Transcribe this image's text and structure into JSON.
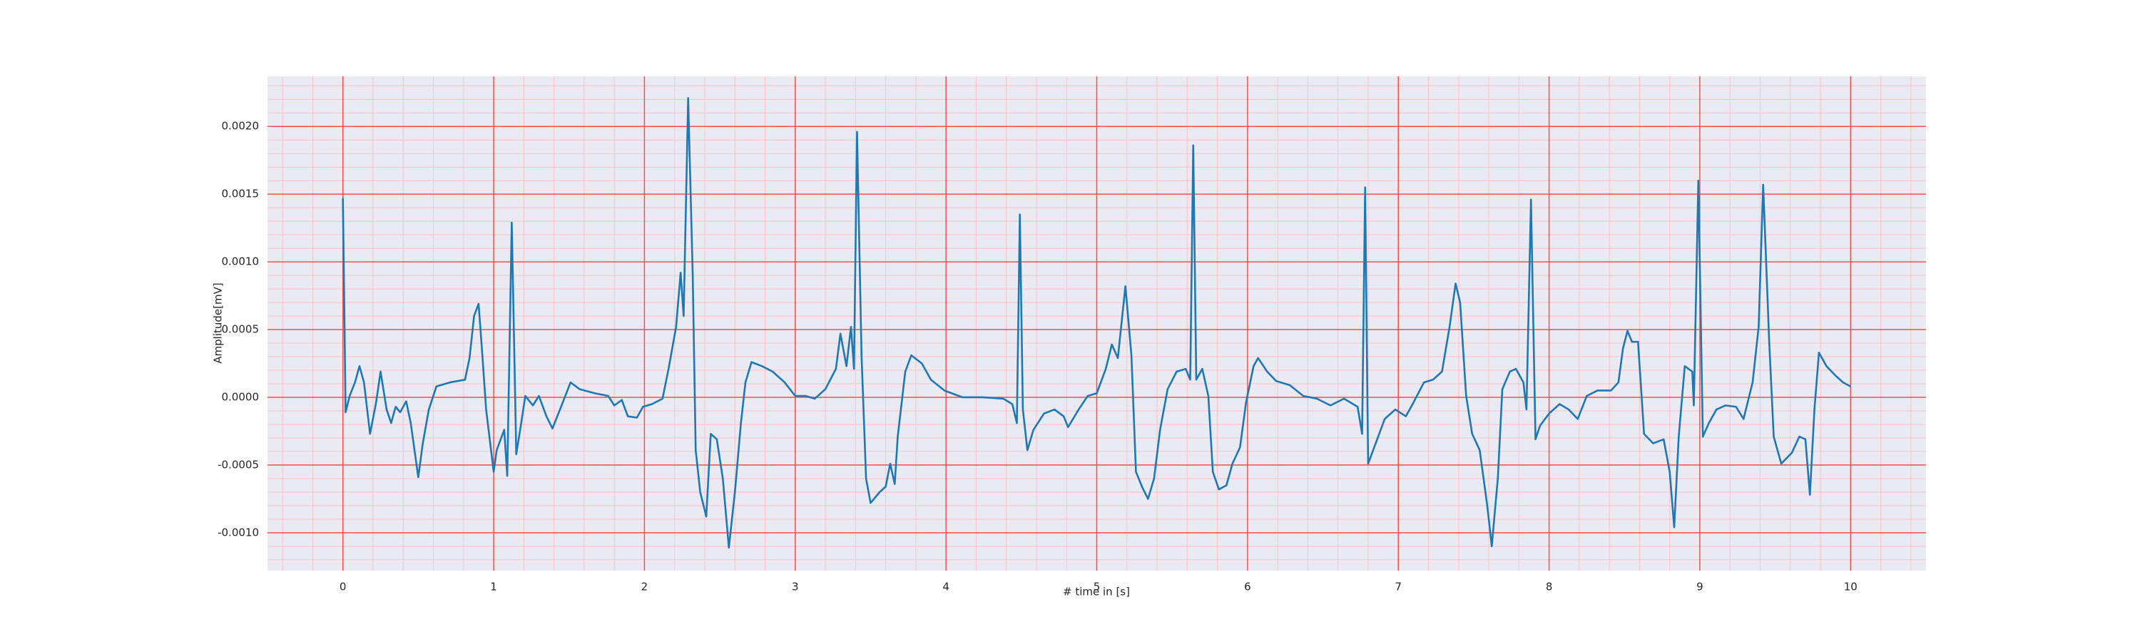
{
  "chart_data": {
    "type": "line",
    "xlabel": "# time in [s]",
    "ylabel": "Amplitude[mV]",
    "xlim": [
      -0.5,
      10.5
    ],
    "ylim": [
      -0.00128,
      0.00237
    ],
    "xticks": [
      0,
      1,
      2,
      3,
      4,
      5,
      6,
      7,
      8,
      9,
      10
    ],
    "yticks": [
      {
        "value": -0.001,
        "label": "-0.0010"
      },
      {
        "value": -0.0005,
        "label": "-0.0005"
      },
      {
        "value": 0,
        "label": "0.0000"
      },
      {
        "value": 0.0005,
        "label": "0.0005"
      },
      {
        "value": 0.001,
        "label": "0.0010"
      },
      {
        "value": 0.0015,
        "label": "0.0015"
      },
      {
        "value": 0.002,
        "label": "0.0020"
      }
    ],
    "grid": true,
    "grid_color": "#ff4d4d",
    "minor_grid": {
      "x": 0.2,
      "y": 0.0001
    },
    "minor_grid_color": "#ffc2c8",
    "background": "#eaeaf2",
    "color": "#1f77b4",
    "x": [
      0,
      0.018,
      0.045,
      0.08,
      0.11,
      0.14,
      0.18,
      0.22,
      0.25,
      0.29,
      0.32,
      0.35,
      0.38,
      0.42,
      0.45,
      0.5,
      0.53,
      0.57,
      0.62,
      0.71,
      0.81,
      0.84,
      0.87,
      0.9,
      0.92,
      0.95,
      1.0,
      1.02,
      1.07,
      1.09,
      1.12,
      1.15,
      1.18,
      1.21,
      1.26,
      1.3,
      1.35,
      1.39,
      1.44,
      1.51,
      1.57,
      1.67,
      1.76,
      1.8,
      1.85,
      1.89,
      1.95,
      1.99,
      2.05,
      2.12,
      2.16,
      2.21,
      2.24,
      2.26,
      2.29,
      2.32,
      2.34,
      2.37,
      2.41,
      2.44,
      2.48,
      2.52,
      2.56,
      2.6,
      2.64,
      2.67,
      2.71,
      2.78,
      2.85,
      2.93,
      3.0,
      3.07,
      3.13,
      3.2,
      3.27,
      3.3,
      3.34,
      3.37,
      3.39,
      3.41,
      3.44,
      3.47,
      3.5,
      3.56,
      3.6,
      3.63,
      3.66,
      3.68,
      3.73,
      3.77,
      3.84,
      3.9,
      3.99,
      4.11,
      4.24,
      4.38,
      4.44,
      4.47,
      4.49,
      4.51,
      4.54,
      4.58,
      4.65,
      4.72,
      4.78,
      4.81,
      4.88,
      4.94,
      5.0,
      5.06,
      5.1,
      5.14,
      5.19,
      5.23,
      5.26,
      5.3,
      5.34,
      5.38,
      5.42,
      5.47,
      5.53,
      5.59,
      5.62,
      5.64,
      5.66,
      5.7,
      5.74,
      5.77,
      5.81,
      5.86,
      5.9,
      5.95,
      5.99,
      6.04,
      6.07,
      6.13,
      6.19,
      6.28,
      6.37,
      6.46,
      6.55,
      6.64,
      6.73,
      6.76,
      6.78,
      6.8,
      6.85,
      6.91,
      6.98,
      7.05,
      7.1,
      7.17,
      7.23,
      7.29,
      7.34,
      7.38,
      7.41,
      7.45,
      7.49,
      7.54,
      7.59,
      7.62,
      7.66,
      7.69,
      7.74,
      7.78,
      7.83,
      7.85,
      7.88,
      7.91,
      7.94,
      8.0,
      8.07,
      8.13,
      8.19,
      8.25,
      8.32,
      8.41,
      8.46,
      8.49,
      8.52,
      8.55,
      8.59,
      8.63,
      8.69,
      8.76,
      8.8,
      8.83,
      8.86,
      8.9,
      8.95,
      8.96,
      8.99,
      9.02,
      9.06,
      9.11,
      9.17,
      9.24,
      9.29,
      9.35,
      9.39,
      9.42,
      9.46,
      9.49,
      9.54,
      9.61,
      9.66,
      9.7,
      9.73,
      9.76,
      9.79,
      9.84,
      9.9,
      9.95,
      10.0
    ],
    "values": [
      0.00147,
      -0.00011,
      1e-05,
      0.00011,
      0.00023,
      0.00011,
      -0.00027,
      -4e-05,
      0.00019,
      -9e-05,
      -0.00019,
      -7e-05,
      -0.00011,
      -3e-05,
      -0.00019,
      -0.00059,
      -0.00034,
      -9e-05,
      8e-05,
      0.00011,
      0.00013,
      0.00029,
      0.0006,
      0.00069,
      0.00039,
      -9e-05,
      -0.00055,
      -0.00039,
      -0.00024,
      -0.00058,
      0.00129,
      -0.00042,
      -0.00021,
      1e-05,
      -6e-05,
      1e-05,
      -0.00014,
      -0.00023,
      -9e-05,
      0.00011,
      6e-05,
      3e-05,
      1e-05,
      -6e-05,
      -2e-05,
      -0.00014,
      -0.00015,
      -7e-05,
      -5e-05,
      -1e-05,
      0.00021,
      0.00052,
      0.00092,
      0.0006,
      0.00221,
      0.00092,
      -0.00039,
      -0.0007,
      -0.00088,
      -0.00027,
      -0.00031,
      -0.0006,
      -0.00111,
      -0.0007,
      -0.00019,
      0.00011,
      0.00026,
      0.00023,
      0.00019,
      0.00011,
      1e-05,
      1e-05,
      -1e-05,
      6e-05,
      0.00021,
      0.00047,
      0.00023,
      0.00052,
      0.00021,
      0.00196,
      0.00031,
      -0.0006,
      -0.00078,
      -0.0007,
      -0.00066,
      -0.00049,
      -0.00064,
      -0.00029,
      0.00019,
      0.00031,
      0.00025,
      0.00013,
      5e-05,
      0,
      0,
      -1e-05,
      -5e-05,
      -0.00019,
      0.00135,
      -9e-05,
      -0.00039,
      -0.00024,
      -0.00012,
      -9e-05,
      -0.00014,
      -0.00022,
      -9e-05,
      1e-05,
      3e-05,
      0.00021,
      0.00039,
      0.00029,
      0.00082,
      0.00031,
      -0.00055,
      -0.00066,
      -0.00075,
      -0.0006,
      -0.00024,
      6e-05,
      0.00019,
      0.00021,
      0.00013,
      0.00186,
      0.00013,
      0.00021,
      1e-05,
      -0.00055,
      -0.00068,
      -0.00065,
      -0.00049,
      -0.00037,
      -4e-05,
      0.00023,
      0.00029,
      0.00019,
      0.00012,
      9e-05,
      1e-05,
      -1e-05,
      -6e-05,
      -1e-05,
      -7e-05,
      -0.00027,
      0.00155,
      -0.00049,
      -0.00034,
      -0.00016,
      -9e-05,
      -0.00014,
      -4e-05,
      0.00011,
      0.00013,
      0.00019,
      0.00052,
      0.00084,
      0.0007,
      1e-05,
      -0.00027,
      -0.00039,
      -0.0008,
      -0.0011,
      -0.0006,
      6e-05,
      0.00019,
      0.00021,
      0.00011,
      -9e-05,
      0.00146,
      -0.00031,
      -0.00021,
      -0.00012,
      -5e-05,
      -9e-05,
      -0.00016,
      1e-05,
      5e-05,
      5e-05,
      0.00011,
      0.00036,
      0.00049,
      0.00041,
      0.00041,
      -0.00027,
      -0.00034,
      -0.00031,
      -0.00055,
      -0.00096,
      -0.00029,
      0.00023,
      0.00019,
      -6e-05,
      0.0016,
      -0.00029,
      -0.00019,
      -9e-05,
      -6e-05,
      -7e-05,
      -0.00016,
      0.00011,
      0.00052,
      0.00157,
      0.00041,
      -0.00029,
      -0.00049,
      -0.00041,
      -0.00029,
      -0.00031,
      -0.00072,
      -9e-05,
      0.00033,
      0.00023,
      0.00016,
      0.00011,
      8e-05
    ]
  }
}
